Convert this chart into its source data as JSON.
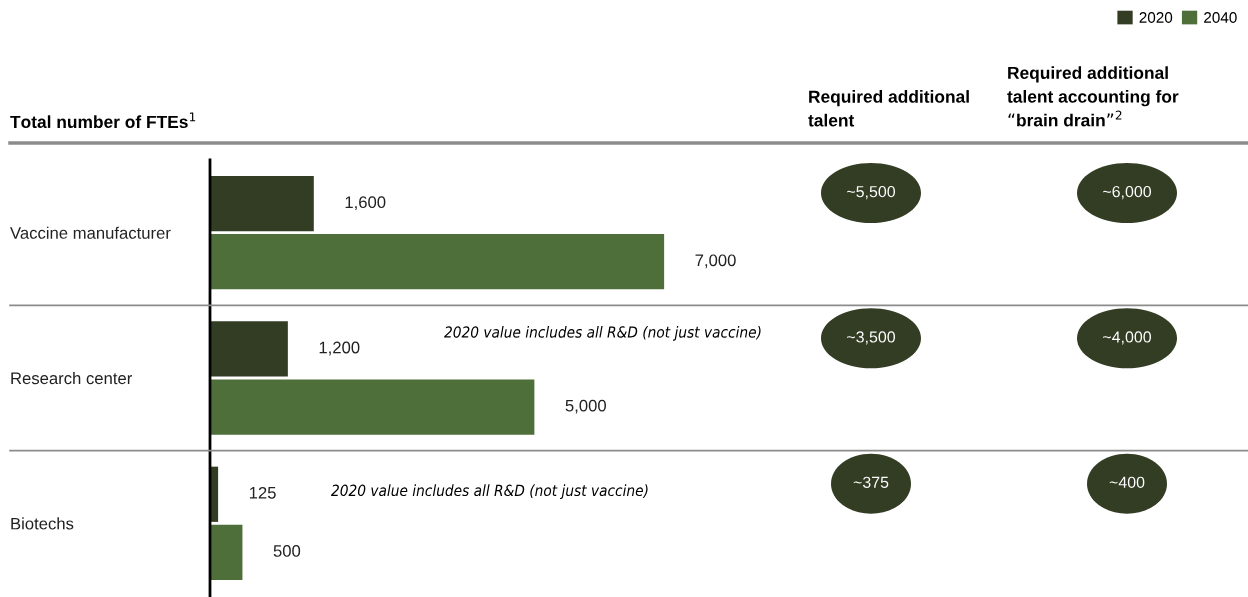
{
  "chart_data": {
    "type": "bar",
    "orientation": "horizontal",
    "title": "Total number of FTEs$^{1}$",
    "categories": [
      "Vaccine manufacturer",
      "Research center",
      "Biotechs"
    ],
    "series": [
      {
        "name": "2020",
        "color": "#323d24",
        "values": [
          1600,
          1200,
          125
        ],
        "value_labels": [
          "1,600",
          "1,200",
          "125"
        ]
      },
      {
        "name": "2040",
        "color": "#4e6e3a",
        "values": [
          7000,
          5000,
          500
        ],
        "value_labels": [
          "7,000",
          "5,000",
          "500"
        ]
      }
    ],
    "xlim": [
      0,
      16000
    ],
    "legend": "top right",
    "grid": false,
    "tick_labels": "y",
    "annotations": [
      "2020 value includes all R&D (not just vaccine)",
      "2020 value includes all R&D (not just vaccine)",
      "Required additional\ntalent",
      "Required additional\ntalent accounting for\n“brain drain”$^{2}$",
      "~5,500",
      "~6,000",
      "~3,500",
      "~4,000",
      "~375",
      "~400"
    ]
  }
}
